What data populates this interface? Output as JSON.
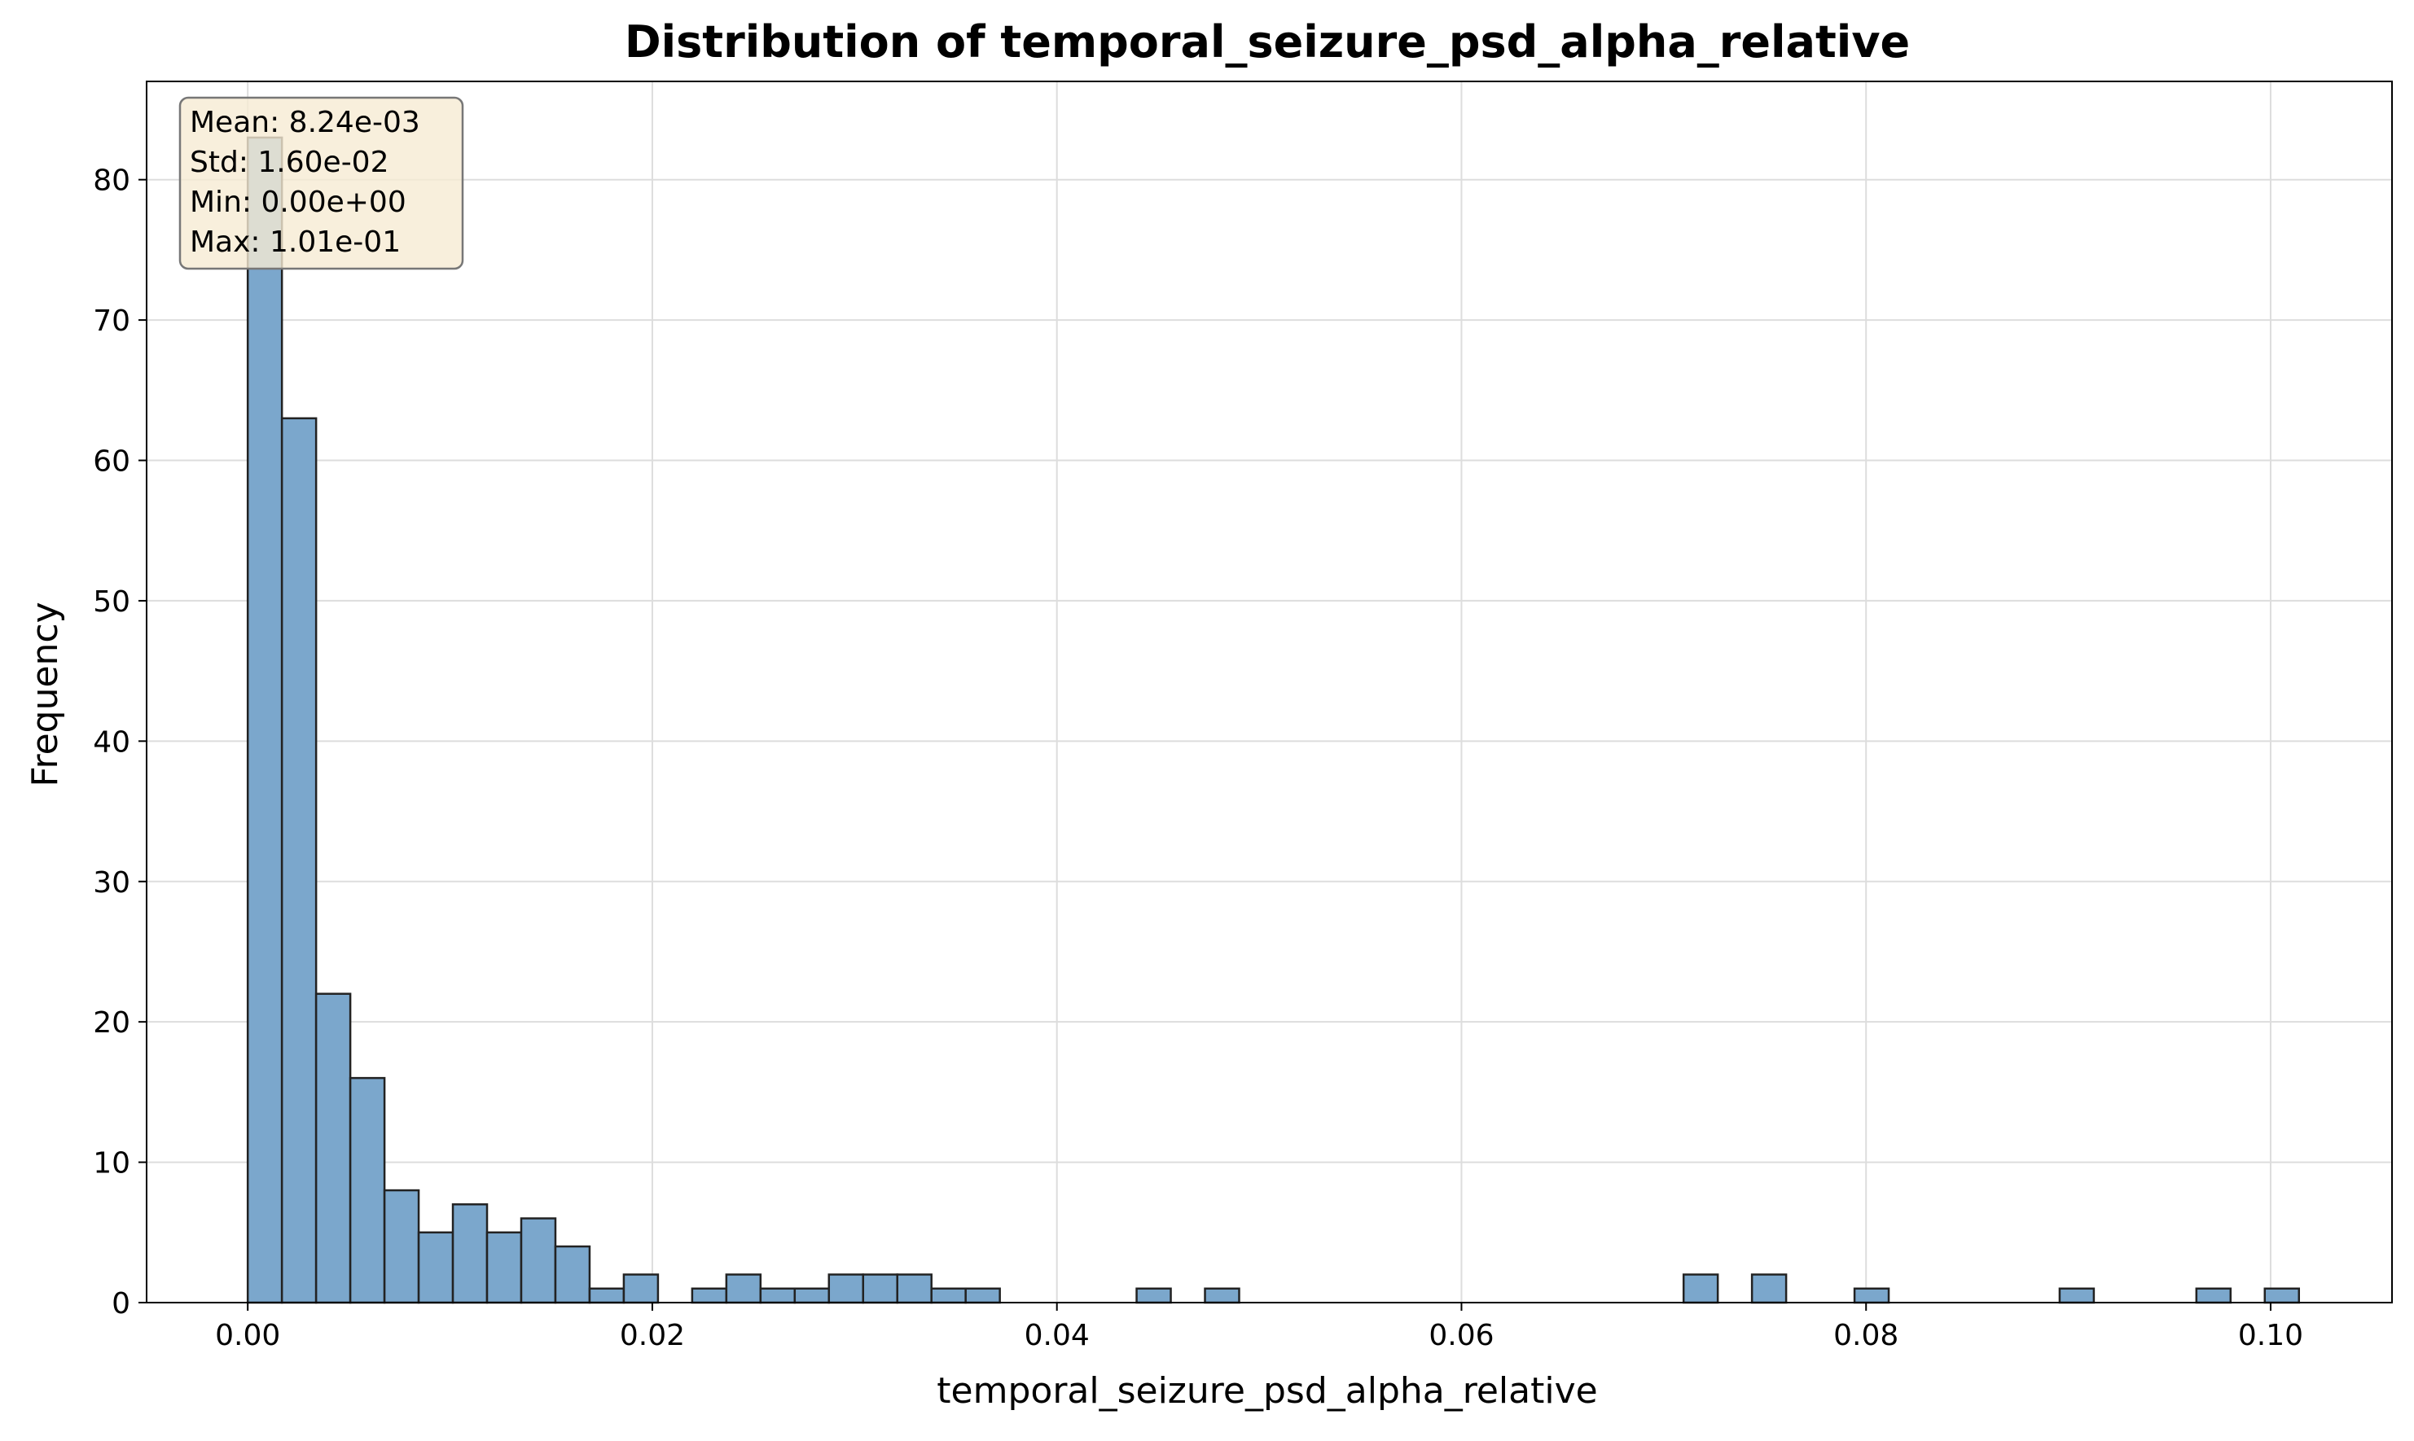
{
  "chart_data": {
    "type": "bar",
    "title": "Distribution of temporal_seizure_psd_alpha_relative",
    "xlabel": "temporal_seizure_psd_alpha_relative",
    "ylabel": "Frequency",
    "xlim": [
      -0.005,
      0.106
    ],
    "ylim": [
      0,
      87
    ],
    "grid": true,
    "xticks": [
      {
        "value": 0.0,
        "label": "0.00"
      },
      {
        "value": 0.02,
        "label": "0.02"
      },
      {
        "value": 0.04,
        "label": "0.04"
      },
      {
        "value": 0.06,
        "label": "0.06"
      },
      {
        "value": 0.08,
        "label": "0.08"
      },
      {
        "value": 0.1,
        "label": "0.10"
      }
    ],
    "yticks": [
      {
        "value": 0,
        "label": "0"
      },
      {
        "value": 10,
        "label": "10"
      },
      {
        "value": 20,
        "label": "20"
      },
      {
        "value": 30,
        "label": "30"
      },
      {
        "value": 40,
        "label": "40"
      },
      {
        "value": 50,
        "label": "50"
      },
      {
        "value": 60,
        "label": "60"
      },
      {
        "value": 70,
        "label": "70"
      },
      {
        "value": 80,
        "label": "80"
      }
    ],
    "bin_start": 0.0,
    "bin_width": 0.00169,
    "counts": [
      83,
      63,
      22,
      16,
      8,
      5,
      7,
      5,
      6,
      4,
      1,
      2,
      0,
      1,
      2,
      1,
      1,
      2,
      2,
      2,
      1,
      1,
      0,
      0,
      0,
      0,
      1,
      0,
      1,
      0,
      0,
      0,
      0,
      0,
      0,
      0,
      0,
      0,
      0,
      0,
      0,
      0,
      2,
      0,
      2,
      0,
      0,
      1,
      0,
      0,
      0,
      0,
      0,
      1,
      0,
      0,
      0,
      1,
      0,
      1
    ],
    "bar_color": "#7ba7cc",
    "edge_color": "#222222",
    "stats_box": {
      "lines": [
        "Mean: 8.24e-03",
        "Std: 1.60e-02",
        "Min: 0.00e+00",
        "Max: 1.01e-01"
      ],
      "background": "#f6ebd3",
      "border": "#777777"
    }
  }
}
